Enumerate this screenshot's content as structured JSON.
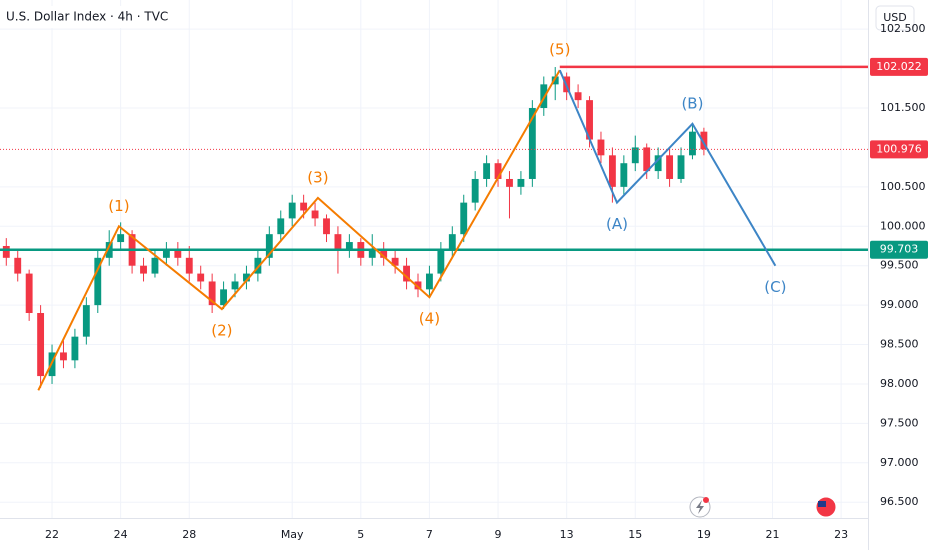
{
  "chart_data": {
    "type": "candlestick",
    "title": "U.S. Dollar Index · 4h · TVC",
    "currency": "USD",
    "up_color": "#089981",
    "down_color": "#f23645",
    "xlim": [
      -9.1,
      142.7
    ],
    "ylim": [
      96.3,
      102.87
    ],
    "xticks": [
      {
        "value": 0,
        "label": "22"
      },
      {
        "value": 12,
        "label": "24"
      },
      {
        "value": 24,
        "label": "28"
      },
      {
        "value": 42,
        "label": "May"
      },
      {
        "value": 54,
        "label": "5"
      },
      {
        "value": 66,
        "label": "7"
      },
      {
        "value": 78,
        "label": "9"
      },
      {
        "value": 90,
        "label": "13"
      },
      {
        "value": 102,
        "label": "15"
      },
      {
        "value": 114,
        "label": "19"
      },
      {
        "value": 126,
        "label": "21"
      },
      {
        "value": 138,
        "label": "23"
      }
    ],
    "yticks": [
      {
        "value": 102.5,
        "label": "102.500"
      },
      {
        "value": 101.5,
        "label": "101.500"
      },
      {
        "value": 100.5,
        "label": "100.500"
      },
      {
        "value": 100,
        "label": "100.000"
      },
      {
        "value": 99.5,
        "label": "99.500"
      },
      {
        "value": 99,
        "label": "99.000"
      },
      {
        "value": 98.5,
        "label": "98.500"
      },
      {
        "value": 98,
        "label": "98.000"
      },
      {
        "value": 97.5,
        "label": "97.500"
      },
      {
        "value": 97,
        "label": "97.000"
      },
      {
        "value": 96.5,
        "label": "96.500"
      }
    ],
    "x": [
      -8,
      -6,
      -4,
      -2,
      0,
      2,
      4,
      6,
      8,
      10,
      12,
      14,
      16,
      18,
      20,
      22,
      24,
      26,
      28,
      30,
      32,
      34,
      36,
      38,
      40,
      42,
      44,
      46,
      48,
      50,
      52,
      54,
      56,
      58,
      60,
      62,
      64,
      66,
      68,
      70,
      72,
      74,
      76,
      78,
      80,
      82,
      84,
      86,
      88,
      90,
      92,
      94,
      96,
      98,
      100,
      102,
      104,
      106,
      108,
      110,
      112,
      114
    ],
    "open": [
      99.75,
      99.6,
      99.4,
      98.9,
      98.1,
      98.4,
      98.3,
      98.6,
      99.0,
      99.6,
      99.8,
      99.9,
      99.5,
      99.4,
      99.6,
      99.7,
      99.6,
      99.4,
      99.3,
      99.0,
      99.2,
      99.3,
      99.4,
      99.6,
      99.9,
      100.1,
      100.3,
      100.2,
      100.1,
      99.9,
      99.7,
      99.8,
      99.6,
      99.7,
      99.6,
      99.5,
      99.3,
      99.2,
      99.4,
      99.7,
      99.9,
      100.3,
      100.6,
      100.8,
      100.6,
      100.5,
      100.6,
      101.5,
      101.8,
      101.9,
      101.7,
      101.6,
      101.1,
      100.9,
      100.5,
      100.8,
      101.0,
      100.7,
      100.9,
      100.6,
      100.9,
      101.2
    ],
    "high": [
      99.85,
      99.7,
      99.45,
      99.0,
      98.5,
      98.55,
      98.7,
      99.1,
      99.7,
      99.95,
      100.05,
      99.95,
      99.6,
      99.7,
      99.8,
      99.8,
      99.75,
      99.5,
      99.4,
      99.3,
      99.4,
      99.5,
      99.7,
      100.0,
      100.2,
      100.4,
      100.4,
      100.3,
      100.15,
      100.0,
      99.9,
      99.85,
      99.9,
      99.8,
      99.7,
      99.6,
      99.4,
      99.5,
      99.8,
      100.0,
      100.4,
      100.7,
      100.9,
      100.85,
      100.7,
      100.7,
      101.6,
      101.9,
      102.02,
      101.95,
      101.8,
      101.65,
      101.2,
      101.0,
      100.9,
      101.15,
      101.05,
      101.0,
      101.0,
      101.0,
      101.3,
      101.25
    ],
    "low": [
      99.5,
      99.3,
      98.8,
      97.95,
      98.0,
      98.2,
      98.2,
      98.5,
      98.9,
      99.5,
      99.7,
      99.4,
      99.3,
      99.35,
      99.5,
      99.5,
      99.3,
      99.2,
      98.9,
      98.95,
      99.1,
      99.2,
      99.3,
      99.5,
      99.8,
      100.0,
      100.1,
      100.0,
      99.8,
      99.4,
      99.6,
      99.5,
      99.5,
      99.5,
      99.4,
      99.2,
      99.1,
      99.1,
      99.3,
      99.6,
      99.8,
      100.2,
      100.5,
      100.5,
      100.1,
      100.4,
      100.5,
      101.4,
      101.6,
      101.6,
      101.5,
      101.0,
      100.8,
      100.3,
      100.4,
      100.7,
      100.6,
      100.6,
      100.5,
      100.55,
      100.85,
      100.9
    ],
    "close": [
      99.6,
      99.4,
      98.9,
      98.1,
      98.4,
      98.3,
      98.6,
      99.0,
      99.6,
      99.8,
      99.9,
      99.5,
      99.4,
      99.6,
      99.7,
      99.6,
      99.4,
      99.3,
      99.0,
      99.2,
      99.3,
      99.4,
      99.6,
      99.9,
      100.1,
      100.3,
      100.2,
      100.1,
      99.9,
      99.7,
      99.8,
      99.6,
      99.7,
      99.6,
      99.5,
      99.3,
      99.2,
      99.4,
      99.7,
      99.9,
      100.3,
      100.6,
      100.8,
      100.6,
      100.5,
      100.6,
      101.5,
      101.8,
      101.9,
      101.7,
      101.6,
      101.1,
      100.9,
      100.5,
      100.8,
      101.0,
      100.7,
      100.9,
      100.6,
      100.9,
      101.2,
      100.976
    ],
    "waves": [
      {
        "color": "#f57c00",
        "x": [
          -2.4,
          11.7,
          29.7,
          46.5,
          66,
          88.8
        ],
        "y": [
          97.92,
          100.0,
          98.95,
          100.36,
          99.1,
          101.98
        ],
        "labels": [
          null,
          "(1)",
          "(2)",
          "(3)",
          "(4)",
          "(5)"
        ]
      },
      {
        "color": "#3d85c6",
        "x": [
          88.8,
          98.8,
          112,
          126.5
        ],
        "y": [
          101.98,
          100.3,
          101.3,
          99.5
        ],
        "labels": [
          null,
          "(A)",
          "(B)",
          "(C)"
        ]
      }
    ],
    "levels": [
      {
        "value": 102.022,
        "color": "#f23645",
        "style": "solid",
        "from": 88.8
      },
      {
        "value": 100.976,
        "color": "#f23645",
        "style": "dotted",
        "from": -9.1
      },
      {
        "value": 99.703,
        "color": "#089981",
        "style": "solid",
        "from": -9.1
      }
    ]
  }
}
